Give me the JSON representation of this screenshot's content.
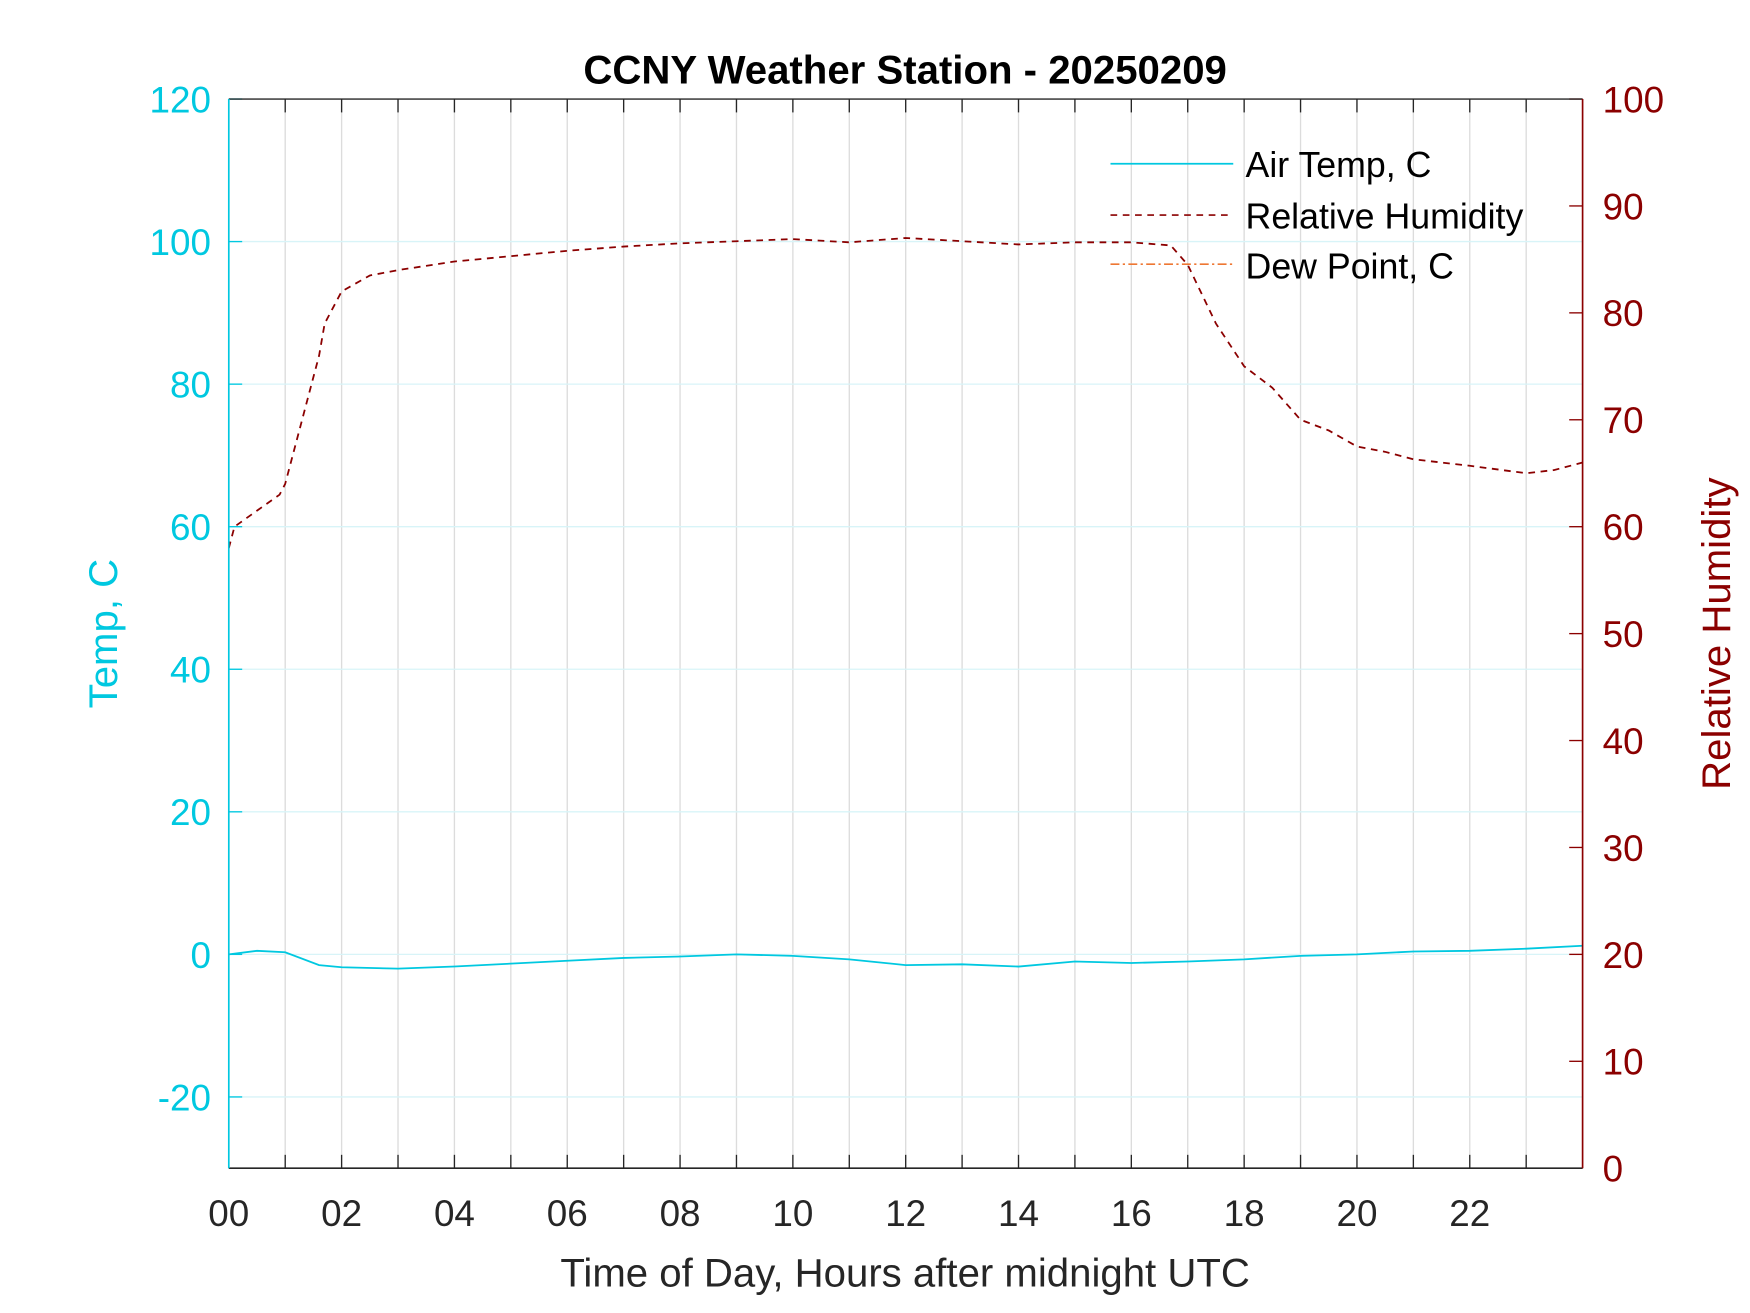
{
  "chart_data": {
    "type": "line",
    "title": "CCNY Weather Station - 20250209",
    "xlabel": "Time of Day, Hours after midnight UTC",
    "ylabel_left": "Temp, C",
    "ylabel_right": "Relative Humidity",
    "xlim": [
      0,
      24
    ],
    "ylim_left": [
      -30,
      120
    ],
    "ylim_right": [
      0,
      100
    ],
    "x_ticks": [
      0,
      2,
      4,
      6,
      8,
      10,
      12,
      14,
      16,
      18,
      20,
      22
    ],
    "x_tick_labels": [
      "00",
      "02",
      "04",
      "06",
      "08",
      "10",
      "12",
      "14",
      "16",
      "18",
      "20",
      "22"
    ],
    "y_left_ticks": [
      -20,
      0,
      20,
      40,
      60,
      80,
      100,
      120
    ],
    "y_right_ticks": [
      0,
      10,
      20,
      30,
      40,
      50,
      60,
      70,
      80,
      90,
      100
    ],
    "grid": true,
    "legend_position": "top-right",
    "colors": {
      "temp": "#00c8e0",
      "rh": "#8b0000",
      "dew": "#ee7733"
    },
    "series": [
      {
        "name": "Air Temp, C",
        "axis": "left",
        "style": "solid",
        "x": [
          0,
          0.5,
          1,
          1.6,
          2,
          3,
          4,
          5,
          6,
          7,
          8,
          9,
          10,
          11,
          12,
          13,
          14,
          15,
          16,
          17,
          18,
          19,
          20,
          21,
          22,
          23,
          24
        ],
        "y": [
          0,
          0.5,
          0.3,
          -1.5,
          -1.8,
          -2,
          -1.7,
          -1.3,
          -0.9,
          -0.5,
          -0.3,
          0,
          -0.2,
          -0.7,
          -1.5,
          -1.4,
          -1.7,
          -1.0,
          -1.2,
          -1.0,
          -0.7,
          -0.2,
          0,
          0.4,
          0.5,
          0.8,
          1.2
        ]
      },
      {
        "name": "Relative Humidity",
        "axis": "right",
        "style": "dashed",
        "x": [
          0,
          0.1,
          0.5,
          0.9,
          1,
          1.3,
          1.6,
          1.7,
          2,
          2.5,
          3,
          4,
          5,
          6,
          7,
          8,
          9,
          10,
          11,
          12,
          13,
          14,
          15,
          16,
          16.7,
          17,
          17.5,
          18,
          18.5,
          19,
          19.5,
          20,
          20.5,
          21,
          22,
          23,
          23.5,
          24
        ],
        "y": [
          58,
          60,
          61.5,
          63,
          64,
          70,
          76,
          79,
          82,
          83.5,
          84,
          84.8,
          85.3,
          85.8,
          86.2,
          86.5,
          86.7,
          86.9,
          86.6,
          87,
          86.7,
          86.4,
          86.6,
          86.6,
          86.3,
          84.5,
          79,
          75,
          73,
          70,
          69,
          67.5,
          67,
          66.3,
          65.7,
          65,
          65.3,
          66
        ]
      },
      {
        "name": "Dew Point, C",
        "axis": "left",
        "style": "dashdot",
        "x": [],
        "y": []
      }
    ]
  }
}
